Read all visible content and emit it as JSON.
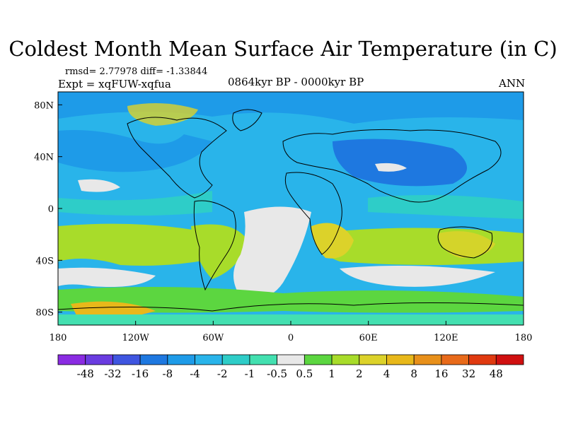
{
  "title": "Coldest Month Mean Surface Air Temperature (in C)",
  "stats_line": "rmsd= 2.77978 diff= -1.33844",
  "experiment_line": "Expt = xqFUW-xqfua",
  "period_line": "0864kyr BP - 0000kyr BP",
  "season": "ANN",
  "lat_labels": [
    "80N",
    "40N",
    "0",
    "40S",
    "80S"
  ],
  "lon_labels": [
    "180",
    "120W",
    "60W",
    "0",
    "60E",
    "120E",
    "180"
  ],
  "colorbar": {
    "labels": [
      "-48",
      "-32",
      "-16",
      "-8",
      "-4",
      "-2",
      "-1",
      "-0.5",
      "0.5",
      "1",
      "2",
      "4",
      "8",
      "16",
      "32",
      "48"
    ],
    "colors": [
      "#8a2be2",
      "#6a3ce0",
      "#3f55e0",
      "#1e78e0",
      "#1e9be8",
      "#29b4ea",
      "#2ecdc8",
      "#43e0b0",
      "#e8e8e8",
      "#5cd640",
      "#a8dc2a",
      "#dcd22a",
      "#e8b81a",
      "#e8901a",
      "#e86a1a",
      "#e03a10",
      "#d01010"
    ]
  }
}
